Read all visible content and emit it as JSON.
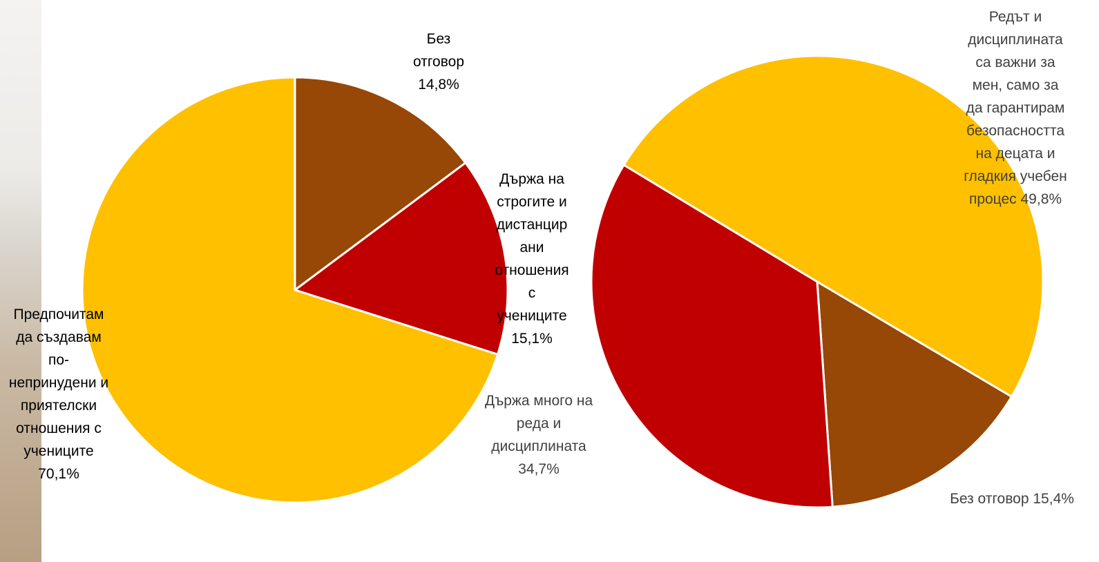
{
  "chart_data": [
    {
      "type": "pie",
      "categories": [
        "Без отговор",
        "Държа на строгите и дистанцирани отношения с учениците",
        "Предпочитам да създавам по-непринудени и приятелски отношения с учениците"
      ],
      "values": [
        14.8,
        15.1,
        70.1
      ],
      "value_labels": [
        "14,8%",
        "15,1%",
        "70,1%"
      ],
      "colors": [
        "#974706",
        "#C00000",
        "#FFC000"
      ]
    },
    {
      "type": "pie",
      "categories": [
        "Без отговор",
        "Държа много на реда и дисциплината",
        "Редът и дисциплината са важни за мен, само за да гарантирам безопасността на децата и гладкия учебен процес"
      ],
      "values": [
        15.4,
        34.7,
        49.8
      ],
      "value_labels": [
        "15,4%",
        "34,7%",
        "49,8%"
      ],
      "colors": [
        "#974706",
        "#C00000",
        "#FFC000"
      ]
    }
  ]
}
